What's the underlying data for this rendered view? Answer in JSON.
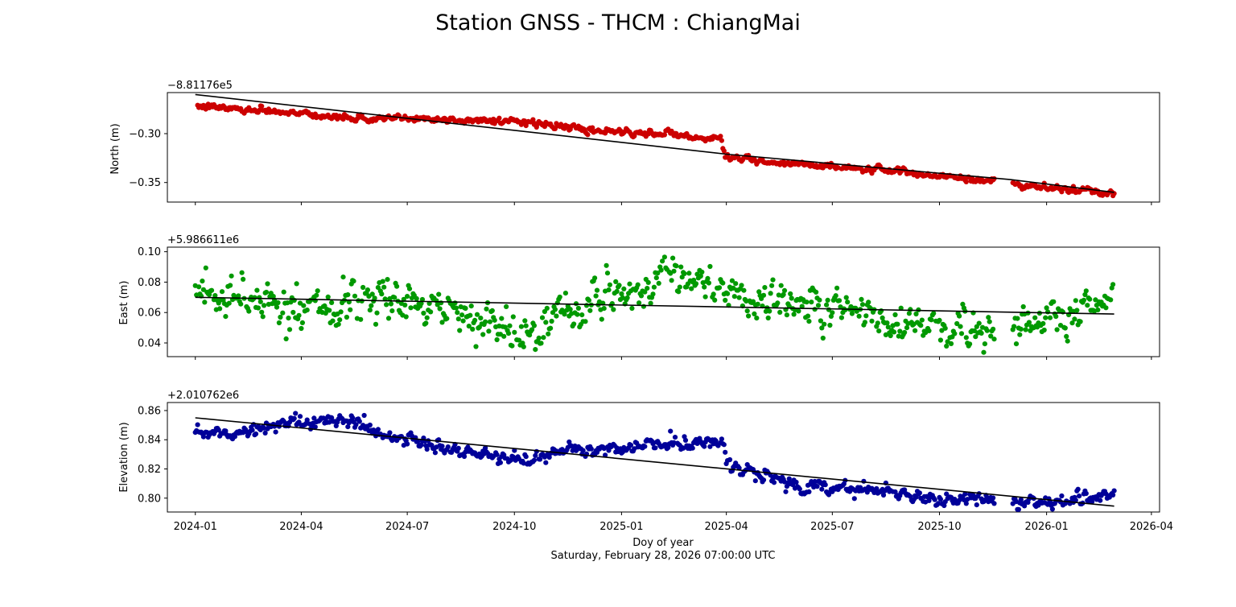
{
  "figure": {
    "title": "Station GNSS - THCM : ChiangMai",
    "xlabel": "Doy of year",
    "xlabel2": "Saturday, February 28, 2026 07:00:00 UTC",
    "x_ticks": [
      "2024-01",
      "2024-04",
      "2024-07",
      "2024-10",
      "2025-01",
      "2025-04",
      "2025-07",
      "2025-10",
      "2026-01",
      "2026-04"
    ],
    "x_tick_dates": [
      "2024-01-01",
      "2024-04-01",
      "2024-07-01",
      "2024-10-01",
      "2025-01-01",
      "2025-04-01",
      "2025-07-01",
      "2025-10-01",
      "2026-01-01",
      "2026-04-01"
    ],
    "xlim": [
      "2023-12-08",
      "2026-04-08"
    ],
    "grid": false
  },
  "chart_data": [
    {
      "type": "scatter",
      "panel": "north",
      "ylabel": "North (m)",
      "offset_label": "−8.81176e5",
      "color": "#cc0000",
      "trend_color": "#000000",
      "ylim": [
        -0.37,
        -0.258
      ],
      "y_ticks": [
        -0.3,
        -0.35
      ],
      "y_tick_labels": [
        "−0.30",
        "−0.35"
      ],
      "x_range": [
        "2024-01-01",
        "2026-02-28"
      ],
      "series": [
        {
          "knots": [
            {
              "x": "2024-01-01",
              "y": -0.272
            },
            {
              "x": "2024-02-15",
              "y": -0.275
            },
            {
              "x": "2024-04-01",
              "y": -0.279
            },
            {
              "x": "2024-05-15",
              "y": -0.285
            },
            {
              "x": "2024-07-01",
              "y": -0.284
            },
            {
              "x": "2024-08-15",
              "y": -0.286
            },
            {
              "x": "2024-10-01",
              "y": -0.287
            },
            {
              "x": "2024-11-15",
              "y": -0.294
            },
            {
              "x": "2025-01-01",
              "y": -0.299
            },
            {
              "x": "2025-02-15",
              "y": -0.301
            },
            {
              "x": "2025-03-28",
              "y": -0.306
            },
            {
              "x": "2025-03-31",
              "y": -0.323
            },
            {
              "x": "2025-05-15",
              "y": -0.331
            },
            {
              "x": "2025-07-01",
              "y": -0.333
            },
            {
              "x": "2025-08-15",
              "y": -0.337
            },
            {
              "x": "2025-10-01",
              "y": -0.343
            },
            {
              "x": "2025-11-15",
              "y": -0.349
            },
            {
              "x": "2026-01-01",
              "y": -0.355
            },
            {
              "x": "2026-02-28",
              "y": -0.362
            }
          ],
          "noise": 0.0015,
          "gaps": [
            [
              "2025-11-18",
              "2025-12-02"
            ]
          ]
        }
      ],
      "trend": [
        {
          "x": "2024-01-01",
          "y": -0.26
        },
        {
          "x": "2025-04-01",
          "y": -0.321
        },
        {
          "x": "2025-12-01",
          "y": -0.347
        },
        {
          "x": "2026-02-28",
          "y": -0.36
        }
      ]
    },
    {
      "type": "scatter",
      "panel": "east",
      "ylabel": "East (m)",
      "offset_label": "+5.986611e6",
      "color": "#009900",
      "trend_color": "#000000",
      "ylim": [
        0.031,
        0.103
      ],
      "y_ticks": [
        0.04,
        0.06,
        0.08,
        0.1
      ],
      "y_tick_labels": [
        "0.04",
        "0.06",
        "0.08",
        "0.10"
      ],
      "x_range": [
        "2024-01-01",
        "2026-02-28"
      ],
      "series": [
        {
          "knots": [
            {
              "x": "2024-01-01",
              "y": 0.074
            },
            {
              "x": "2024-02-15",
              "y": 0.07
            },
            {
              "x": "2024-04-01",
              "y": 0.064
            },
            {
              "x": "2024-05-15",
              "y": 0.066
            },
            {
              "x": "2024-06-15",
              "y": 0.068
            },
            {
              "x": "2024-07-15",
              "y": 0.064
            },
            {
              "x": "2024-08-20",
              "y": 0.057
            },
            {
              "x": "2024-10-01",
              "y": 0.05
            },
            {
              "x": "2024-10-25",
              "y": 0.046
            },
            {
              "x": "2024-11-15",
              "y": 0.06
            },
            {
              "x": "2024-12-15",
              "y": 0.07
            },
            {
              "x": "2025-01-10",
              "y": 0.075
            },
            {
              "x": "2025-02-10",
              "y": 0.084
            },
            {
              "x": "2025-03-15",
              "y": 0.082
            },
            {
              "x": "2025-04-01",
              "y": 0.078
            },
            {
              "x": "2025-04-20",
              "y": 0.064
            },
            {
              "x": "2025-05-20",
              "y": 0.07
            },
            {
              "x": "2025-06-20",
              "y": 0.066
            },
            {
              "x": "2025-07-20",
              "y": 0.061
            },
            {
              "x": "2025-08-20",
              "y": 0.054
            },
            {
              "x": "2025-10-01",
              "y": 0.049
            },
            {
              "x": "2025-11-10",
              "y": 0.046
            },
            {
              "x": "2025-12-10",
              "y": 0.053
            },
            {
              "x": "2026-01-10",
              "y": 0.06
            },
            {
              "x": "2026-02-28",
              "y": 0.07
            }
          ],
          "noise": 0.006,
          "gaps": [
            [
              "2025-11-18",
              "2025-12-02"
            ]
          ]
        }
      ],
      "trend": [
        {
          "x": "2024-01-01",
          "y": 0.07
        },
        {
          "x": "2026-02-28",
          "y": 0.059
        }
      ]
    },
    {
      "type": "scatter",
      "panel": "elevation",
      "ylabel": "Elevation (m)",
      "offset_label": "+2.010762e6",
      "color": "#000099",
      "trend_color": "#000000",
      "ylim": [
        0.7905,
        0.8655
      ],
      "y_ticks": [
        0.8,
        0.82,
        0.84,
        0.86
      ],
      "y_tick_labels": [
        "0.80",
        "0.82",
        "0.84",
        "0.86"
      ],
      "x_range": [
        "2024-01-01",
        "2026-02-28"
      ],
      "series": [
        {
          "knots": [
            {
              "x": "2024-01-01",
              "y": 0.845
            },
            {
              "x": "2024-02-15",
              "y": 0.846
            },
            {
              "x": "2024-03-15",
              "y": 0.85
            },
            {
              "x": "2024-04-15",
              "y": 0.853
            },
            {
              "x": "2024-05-15",
              "y": 0.854
            },
            {
              "x": "2024-06-10",
              "y": 0.843
            },
            {
              "x": "2024-07-15",
              "y": 0.837
            },
            {
              "x": "2024-08-15",
              "y": 0.832
            },
            {
              "x": "2024-09-15",
              "y": 0.829
            },
            {
              "x": "2024-10-15",
              "y": 0.825
            },
            {
              "x": "2024-11-01",
              "y": 0.83
            },
            {
              "x": "2024-12-01",
              "y": 0.834
            },
            {
              "x": "2025-01-15",
              "y": 0.834
            },
            {
              "x": "2025-02-15",
              "y": 0.838
            },
            {
              "x": "2025-03-28",
              "y": 0.839
            },
            {
              "x": "2025-04-02",
              "y": 0.822
            },
            {
              "x": "2025-05-01",
              "y": 0.815
            },
            {
              "x": "2025-06-01",
              "y": 0.809
            },
            {
              "x": "2025-07-01",
              "y": 0.808
            },
            {
              "x": "2025-08-15",
              "y": 0.805
            },
            {
              "x": "2025-10-01",
              "y": 0.8
            },
            {
              "x": "2025-11-15",
              "y": 0.799
            },
            {
              "x": "2025-12-20",
              "y": 0.797
            },
            {
              "x": "2026-02-10",
              "y": 0.8
            },
            {
              "x": "2026-02-28",
              "y": 0.804
            }
          ],
          "noise": 0.0022,
          "gaps": [
            [
              "2025-11-18",
              "2025-12-02"
            ]
          ]
        }
      ],
      "trend": [
        {
          "x": "2024-01-01",
          "y": 0.855
        },
        {
          "x": "2026-02-28",
          "y": 0.7945
        }
      ]
    }
  ]
}
